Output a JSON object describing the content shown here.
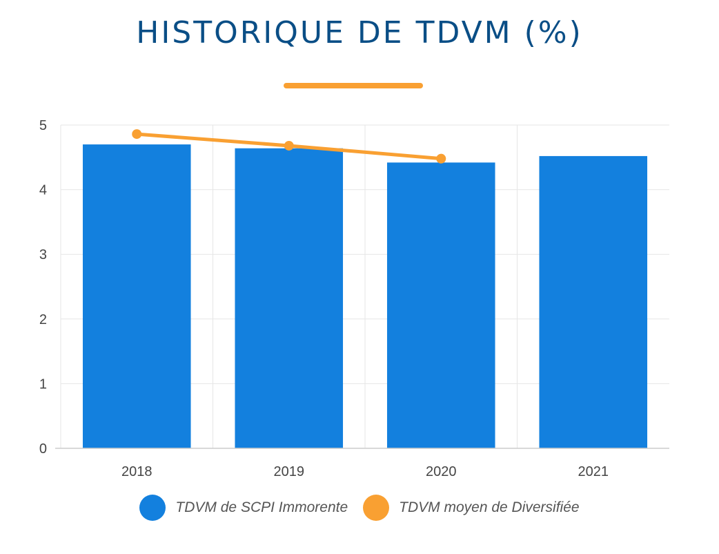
{
  "chart_data": {
    "type": "bar",
    "title": "HISTORIQUE DE TDVM (%)",
    "categories": [
      "2018",
      "2019",
      "2020",
      "2021"
    ],
    "ylim": [
      0,
      5
    ],
    "yticks": [
      "0",
      "1",
      "2",
      "3",
      "4",
      "5"
    ],
    "grid": true,
    "legend_position": "bottom",
    "series": [
      {
        "name": "TDVM de SCPI Immorente",
        "type": "bar",
        "color": "#1380de",
        "values": [
          4.7,
          4.64,
          4.42,
          4.52
        ]
      },
      {
        "name": "TDVM moyen de Diversifiée",
        "type": "line",
        "color": "#f9a032",
        "values": [
          4.86,
          4.68,
          4.48,
          null
        ]
      }
    ]
  },
  "colors": {
    "title": "#0a4e86",
    "accent": "#f9a032",
    "grid": "#e6e6e6",
    "axis": "#cccccc"
  }
}
